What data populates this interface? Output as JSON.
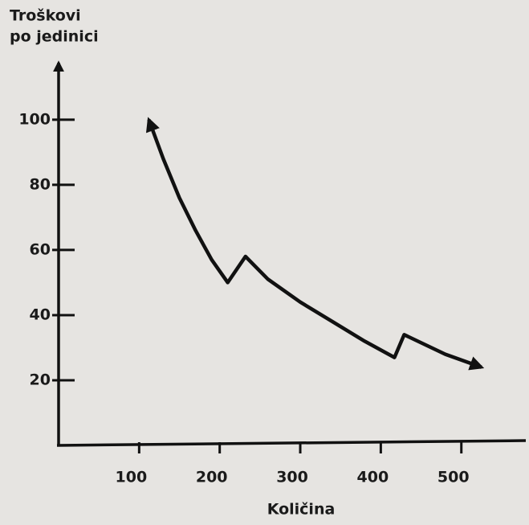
{
  "chart_data": {
    "type": "line",
    "ylabel": [
      "Troškovi",
      "po jedinici"
    ],
    "xlabel": "Količina",
    "x": [
      112,
      130,
      150,
      170,
      190,
      210,
      232,
      260,
      300,
      340,
      380,
      417,
      429,
      480,
      525
    ],
    "values": [
      100,
      88,
      76,
      66,
      57,
      50,
      58,
      51,
      44,
      38,
      32,
      27,
      34,
      28,
      24
    ],
    "color": "#111111",
    "xlim": [
      0,
      580
    ],
    "ylim": [
      0,
      117
    ],
    "xticks": [
      100,
      200,
      300,
      400,
      500
    ],
    "yticks": [
      20,
      40,
      60,
      80,
      100
    ]
  }
}
